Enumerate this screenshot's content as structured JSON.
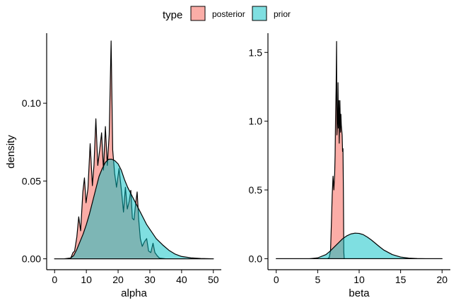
{
  "chart_data": {
    "type": "area",
    "chart_kind": "density",
    "legend": {
      "title": "type",
      "position": "top",
      "entries": [
        {
          "label": "posterior",
          "color": "#F8766D"
        },
        {
          "label": "prior",
          "color": "#00BFC4"
        }
      ]
    },
    "ylabel": "density",
    "grid": false,
    "panels": [
      {
        "xlabel": "alpha",
        "xlim": [
          -2.5,
          52.5
        ],
        "ylim": [
          -0.007,
          0.145
        ],
        "x_ticks": [
          0,
          10,
          20,
          30,
          40,
          50
        ],
        "y_ticks": [
          0.0,
          0.05,
          0.1
        ],
        "y_tick_labels": [
          "0.00",
          "0.05",
          "0.10"
        ],
        "series": [
          {
            "name": "posterior",
            "x": [
              0,
              5,
              5.8,
              6.3,
              7,
              7.6,
              8.2,
              8.9,
              9.4,
              9.9,
              10.5,
              11.2,
              11.9,
              12.4,
              13,
              13.6,
              14.2,
              14.8,
              15.4,
              16,
              16.6,
              17.2,
              17.8,
              18.3,
              18.9,
              19.5,
              20.3,
              21.1,
              21.7,
              22.3,
              22.9,
              23.5,
              24,
              24.5,
              25,
              25.5,
              26,
              26.5,
              27,
              27.6,
              28.3,
              29,
              29.6,
              30.3,
              31,
              31.6,
              32.3,
              33,
              35,
              40,
              50
            ],
            "y": [
              0,
              0,
              0.004,
              0.005,
              0.014,
              0.027,
              0.018,
              0.043,
              0.052,
              0.036,
              0.045,
              0.074,
              0.047,
              0.06,
              0.09,
              0.06,
              0.07,
              0.081,
              0.057,
              0.085,
              0.06,
              0.08,
              0.14,
              0.07,
              0.055,
              0.046,
              0.058,
              0.043,
              0.03,
              0.046,
              0.032,
              0.037,
              0.044,
              0.026,
              0.025,
              0.035,
              0.043,
              0.025,
              0.013,
              0.008,
              0.011,
              0.013,
              0.005,
              0.004,
              0.01,
              0.004,
              0.002,
              0.0005,
              0,
              0,
              0
            ]
          },
          {
            "name": "prior",
            "x": [
              0,
              3,
              5,
              6,
              7,
              8,
              9,
              10,
              11,
              12,
              13,
              14,
              15,
              16,
              17,
              18,
              19,
              20,
              21,
              22,
              23,
              24,
              25,
              26,
              27,
              28,
              29,
              30,
              32,
              34,
              36,
              38,
              40,
              43,
              46,
              50
            ],
            "y": [
              0,
              0,
              0.0005,
              0.002,
              0.006,
              0.011,
              0.016,
              0.022,
              0.029,
              0.037,
              0.045,
              0.053,
              0.058,
              0.062,
              0.064,
              0.064,
              0.063,
              0.061,
              0.057,
              0.051,
              0.046,
              0.042,
              0.038,
              0.034,
              0.03,
              0.026,
              0.022,
              0.019,
              0.013,
              0.009,
              0.0055,
              0.003,
              0.0015,
              0.0006,
              0.0002,
              0
            ]
          }
        ]
      },
      {
        "xlabel": "beta",
        "xlim": [
          -1,
          21
        ],
        "ylim": [
          -0.08,
          1.64
        ],
        "x_ticks": [
          0,
          5,
          10,
          15,
          20
        ],
        "y_ticks": [
          0.0,
          0.5,
          1.0,
          1.5
        ],
        "y_tick_labels": [
          "0.0",
          "0.5",
          "1.0",
          "1.5"
        ],
        "series": [
          {
            "name": "posterior",
            "x": [
              0,
              6.2,
              6.4,
              6.55,
              6.65,
              6.75,
              6.85,
              6.95,
              7.05,
              7.1,
              7.15,
              7.22,
              7.28,
              7.32,
              7.4,
              7.45,
              7.5,
              7.55,
              7.6,
              7.68,
              7.75,
              7.8,
              7.85,
              7.95,
              8,
              8.05,
              8.1,
              8.15,
              8.2,
              20
            ],
            "y": [
              0,
              0,
              0.01,
              0.06,
              0.25,
              0.46,
              0.6,
              0.5,
              0.62,
              0.75,
              1.0,
              1.24,
              1.58,
              0.9,
              1.0,
              1.28,
              0.95,
              1.15,
              0.84,
              1.15,
              0.92,
              1.05,
              0.97,
              0.9,
              0.78,
              0.8,
              0.5,
              0.05,
              0,
              0
            ]
          },
          {
            "name": "prior",
            "x": [
              0,
              4,
              5,
              6,
              6.5,
              7,
              7.5,
              8,
              8.5,
              9,
              9.5,
              10,
              10.5,
              11,
              11.5,
              12,
              12.5,
              13,
              14,
              15,
              16,
              17,
              18,
              20
            ],
            "y": [
              0,
              0,
              0.006,
              0.03,
              0.055,
              0.085,
              0.115,
              0.145,
              0.166,
              0.18,
              0.186,
              0.184,
              0.175,
              0.157,
              0.135,
              0.11,
              0.085,
              0.062,
              0.03,
              0.012,
              0.004,
              0.001,
              0,
              0
            ]
          }
        ]
      }
    ]
  }
}
